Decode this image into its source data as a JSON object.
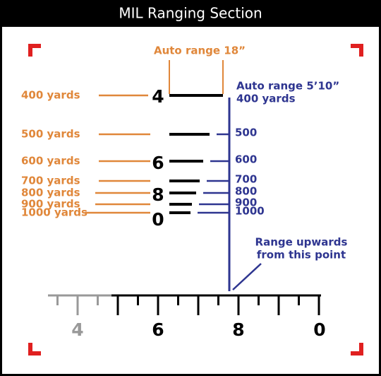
{
  "header": {
    "title": "MIL Ranging Section"
  },
  "auto_range_width": "Auto range 18”",
  "auto_range_height": {
    "line1": "Auto range 5’10”",
    "line2": "400 yards"
  },
  "yard_labels": [
    "400 yards",
    "500 yards",
    "600 yards",
    "700 yards",
    "800 yards",
    "900 yards",
    "1000 yards"
  ],
  "reticle_numbers": [
    "4",
    "6",
    "8",
    "0"
  ],
  "range_labels": [
    "500",
    "600",
    "700",
    "800",
    "900",
    "1000"
  ],
  "note": {
    "line1": "Range upwards",
    "line2": "from this point"
  },
  "scale_labels": [
    "4",
    "6",
    "8",
    "0"
  ]
}
